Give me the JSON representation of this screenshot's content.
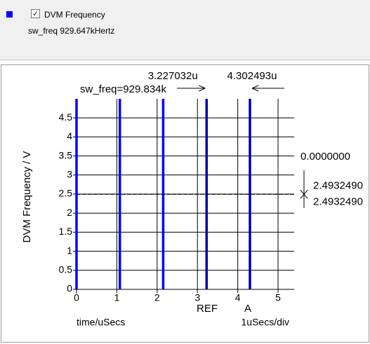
{
  "legend": {
    "series_name": "DVM Frequency",
    "checked_glyph": "✓",
    "swatch_color": "#0000ff",
    "measure_name": "sw_freq",
    "measure_value": "929.647kHertz"
  },
  "chart_data": {
    "type": "line",
    "title": "",
    "xlabel": "time/uSecs",
    "ylabel": "DVM Frequency / V",
    "x_scale_label": "1uSecs/div",
    "xlim": [
      0,
      5.4
    ],
    "ylim": [
      0,
      5
    ],
    "x_ticks": [
      0,
      1,
      2,
      3,
      4,
      5
    ],
    "x_tick_labels": [
      "0",
      "1",
      "2",
      "3",
      "4",
      "5"
    ],
    "y_ticks": [
      0,
      0.5,
      1,
      1.5,
      2,
      2.5,
      3,
      3.5,
      4,
      4.5
    ],
    "y_tick_labels": [
      "0",
      "0.5",
      "1",
      "1.5",
      "2",
      "2.5",
      "3",
      "3.5",
      "4",
      "4.5"
    ],
    "grid": true,
    "series": [
      {
        "color": "#0000ff",
        "pulse_high": 5,
        "pulse_low": 0,
        "pulse_times": [
          0.0,
          1.075,
          2.15,
          3.227032,
          4.302493
        ]
      }
    ],
    "average_level": 2.493249,
    "cursors": {
      "ref": {
        "label": "REF",
        "x": 3.227032,
        "x_label": "3.227032u"
      },
      "a": {
        "label": "A",
        "x": 4.302493,
        "x_label": "4.302493u"
      },
      "measurement": "sw_freq=929.834k",
      "y_delta_label": "0.0000000",
      "y_ref_label": "2.4932490",
      "y_a_label": "2.4932490"
    }
  }
}
